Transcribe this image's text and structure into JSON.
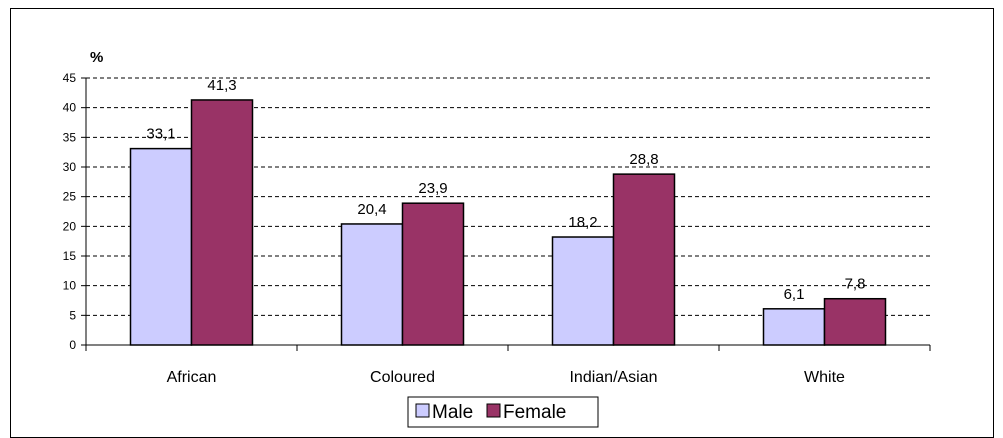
{
  "chart_data": {
    "type": "bar",
    "ylabel": "%",
    "categories": [
      "African",
      "Coloured",
      "Indian/Asian",
      "White"
    ],
    "series": [
      {
        "name": "Male",
        "values": [
          33.1,
          20.4,
          18.2,
          6.1
        ],
        "labels": [
          "33,1",
          "20,4",
          "18,2",
          "6,1"
        ],
        "color": "#CCCCFF"
      },
      {
        "name": "Female",
        "values": [
          41.3,
          23.9,
          28.8,
          7.8
        ],
        "labels": [
          "41,3",
          "23,9",
          "28,8",
          "7,8"
        ],
        "color": "#993366"
      }
    ],
    "ylim": [
      0,
      45
    ],
    "yticks": [
      0,
      5,
      10,
      15,
      20,
      25,
      30,
      35,
      40,
      45
    ],
    "grid": true,
    "legend": "bottom"
  }
}
